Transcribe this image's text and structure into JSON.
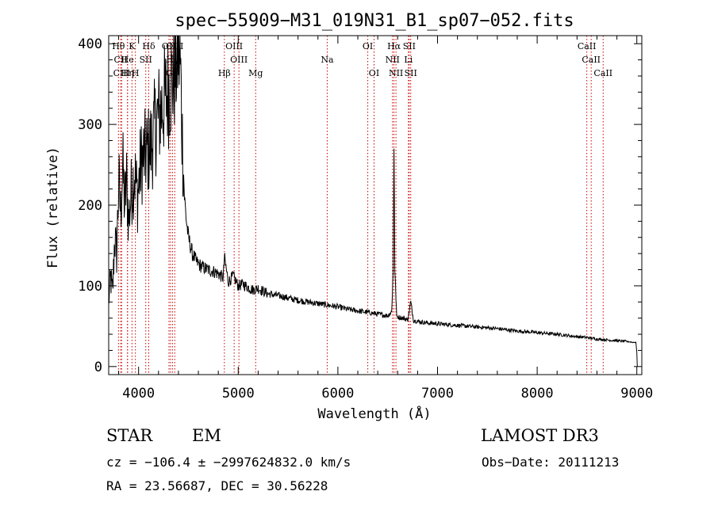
{
  "colors": {
    "spectrum": "#000000",
    "line_marker": "#cc0000",
    "background": "#ffffff"
  },
  "chart_data": {
    "type": "line",
    "title": "spec−55909−M31_019N31_B1_sp07−052.fits",
    "xlabel": "Wavelength (Å)",
    "ylabel": "Flux (relative)",
    "xlim": [
      3700,
      9050
    ],
    "ylim": [
      -10,
      410
    ],
    "xticks": [
      4000,
      5000,
      6000,
      7000,
      8000,
      9000
    ],
    "yticks": [
      0,
      100,
      200,
      300,
      400
    ],
    "series": [
      {
        "name": "flux",
        "x": [
          3700,
          3720,
          3740,
          3760,
          3780,
          3800,
          3820,
          3840,
          3860,
          3880,
          3900,
          3930,
          3960,
          3990,
          4020,
          4050,
          4080,
          4110,
          4140,
          4170,
          4200,
          4230,
          4260,
          4290,
          4320,
          4340,
          4360,
          4380,
          4400,
          4420,
          4440,
          4460,
          4480,
          4500,
          4540,
          4580,
          4620,
          4660,
          4700,
          4750,
          4800,
          4850,
          4861,
          4900,
          4950,
          5000,
          5050,
          5100,
          5150,
          5200,
          5300,
          5400,
          5500,
          5600,
          5700,
          5800,
          5900,
          6000,
          6100,
          6200,
          6300,
          6400,
          6500,
          6540,
          6555,
          6563,
          6572,
          6590,
          6650,
          6700,
          6716,
          6731,
          6760,
          6800,
          6900,
          7000,
          7200,
          7400,
          7600,
          7800,
          8000,
          8200,
          8400,
          8500,
          8600,
          8700,
          8800,
          8900,
          8960,
          8990,
          9000,
          9005
        ],
        "y": [
          80,
          110,
          90,
          160,
          140,
          230,
          190,
          250,
          200,
          230,
          180,
          220,
          240,
          210,
          250,
          260,
          265,
          270,
          280,
          300,
          310,
          320,
          330,
          340,
          350,
          355,
          365,
          375,
          395,
          370,
          280,
          210,
          180,
          160,
          140,
          130,
          125,
          122,
          120,
          118,
          115,
          110,
          135,
          105,
          112,
          100,
          102,
          98,
          95,
          97,
          90,
          88,
          85,
          82,
          80,
          78,
          76,
          74,
          71,
          69,
          67,
          65,
          63,
          68,
          120,
          275,
          120,
          62,
          60,
          58,
          68,
          80,
          57,
          56,
          54,
          53,
          51,
          49,
          47,
          44,
          42,
          40,
          37,
          36,
          34,
          33,
          32,
          31,
          30,
          30,
          18,
          0
        ]
      }
    ],
    "spectral_lines": [
      {
        "label": "Hθ",
        "wavelength": 3798,
        "row": 0
      },
      {
        "label": "CII",
        "wavelength": 3820,
        "row": 1
      },
      {
        "label": "CIII",
        "wavelength": 3830,
        "row": 2
      },
      {
        "label": "He",
        "wavelength": 3889,
        "row": 1
      },
      {
        "label": "Hη",
        "wavelength": 3889,
        "row": 2
      },
      {
        "label": "K",
        "wavelength": 3934,
        "row": 0
      },
      {
        "label": "H",
        "wavelength": 3968,
        "row": 2
      },
      {
        "label": "SII",
        "wavelength": 4072,
        "row": 1
      },
      {
        "label": "Hδ",
        "wavelength": 4102,
        "row": 0
      },
      {
        "label": "OIII",
        "wavelength": 4320,
        "row": 0
      },
      {
        "label": "G",
        "wavelength": 4305,
        "row": 2
      },
      {
        "label": "Hγ",
        "wavelength": 4340,
        "row": 1
      },
      {
        "label": "OIII",
        "wavelength": 4363,
        "row": 0
      },
      {
        "label": "Hβ",
        "wavelength": 4861,
        "row": 2
      },
      {
        "label": "OIII",
        "wavelength": 4959,
        "row": 0
      },
      {
        "label": "OIII",
        "wavelength": 5007,
        "row": 1
      },
      {
        "label": "Mg",
        "wavelength": 5175,
        "row": 2
      },
      {
        "label": "Na",
        "wavelength": 5893,
        "row": 1
      },
      {
        "label": "OI",
        "wavelength": 6300,
        "row": 0
      },
      {
        "label": "OI",
        "wavelength": 6363,
        "row": 2
      },
      {
        "label": "Hα",
        "wavelength": 6563,
        "row": 0
      },
      {
        "label": "NII",
        "wavelength": 6548,
        "row": 1
      },
      {
        "label": "NII",
        "wavelength": 6583,
        "row": 2
      },
      {
        "label": "SII",
        "wavelength": 6716,
        "row": 0
      },
      {
        "label": "Li",
        "wavelength": 6708,
        "row": 1
      },
      {
        "label": "SII",
        "wavelength": 6731,
        "row": 2
      },
      {
        "label": "CaII",
        "wavelength": 8498,
        "row": 0
      },
      {
        "label": "CaII",
        "wavelength": 8542,
        "row": 1
      },
      {
        "label": "CaII",
        "wavelength": 8662,
        "row": 2
      }
    ]
  },
  "info": {
    "class": "STAR",
    "subclass": "EM",
    "survey": "LAMOST DR3",
    "cz_line": "cz = −106.4 ± −2997624832.0 km/s",
    "obs_date": "Obs−Date: 20111213",
    "radec": "RA =  23.56687, DEC =  30.56228"
  }
}
